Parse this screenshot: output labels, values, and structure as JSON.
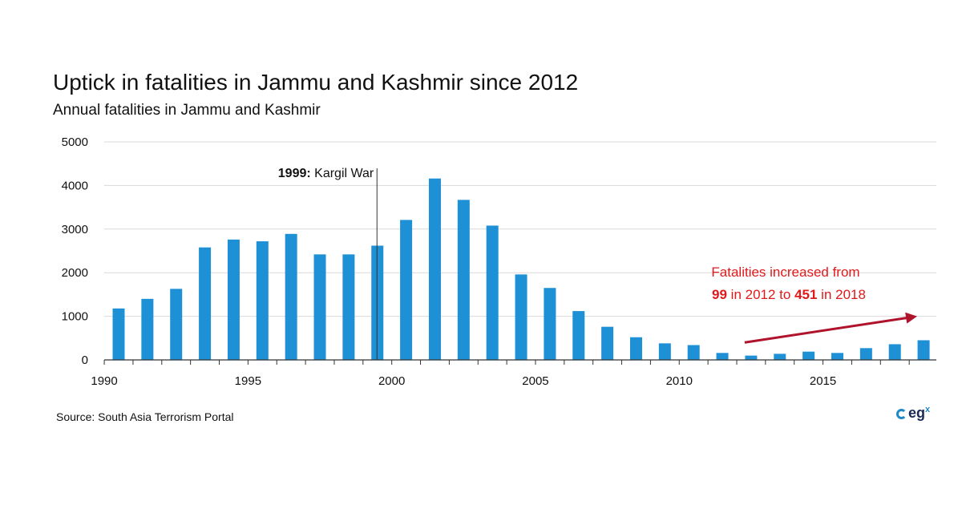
{
  "header": {
    "title": "Uptick in fatalities in Jammu and Kashmir since 2012",
    "subtitle": "Annual fatalities in Jammu and Kashmir"
  },
  "footer": {
    "source": "Source:  South  Asia Terrorism  Portal",
    "logo_text": "eg",
    "logo_sup": "x"
  },
  "chart_data": {
    "type": "bar",
    "title": "Uptick in fatalities in Jammu and Kashmir since 2012",
    "subtitle": "Annual fatalities in Jammu and Kashmir",
    "x": [
      1990,
      1991,
      1992,
      1993,
      1994,
      1995,
      1996,
      1997,
      1998,
      1999,
      2000,
      2001,
      2002,
      2003,
      2004,
      2005,
      2006,
      2007,
      2008,
      2009,
      2010,
      2011,
      2012,
      2013,
      2014,
      2015,
      2016,
      2017,
      2018
    ],
    "values": [
      1180,
      1400,
      1630,
      2580,
      2760,
      2720,
      2890,
      2420,
      2420,
      2620,
      3210,
      4160,
      3670,
      3080,
      1960,
      1650,
      1120,
      760,
      520,
      380,
      340,
      160,
      99,
      140,
      190,
      160,
      270,
      360,
      451
    ],
    "x_tick_labels": [
      "1990",
      "1995",
      "2000",
      "2005",
      "2010",
      "2015"
    ],
    "y_tick_labels": [
      "0",
      "1000",
      "2000",
      "3000",
      "4000",
      "5000"
    ],
    "ylim": [
      0,
      5000
    ],
    "grid": true,
    "bar_color": "#1e90d6",
    "annotation_color": "#e0191b",
    "arrow_color": "#b0142c",
    "annotations": [
      {
        "x": 1998.5,
        "bold": "1999:",
        "text": " Kargil War"
      },
      {
        "line1": "Fatalities increased from",
        "line2_bold_1": "99",
        "line2_mid": " in 2012 to ",
        "line2_bold_2": "451",
        "line2_end": " in 2018"
      }
    ],
    "trend_arrow": {
      "from": [
        2012,
        400
      ],
      "to": [
        2018,
        1000
      ]
    }
  }
}
